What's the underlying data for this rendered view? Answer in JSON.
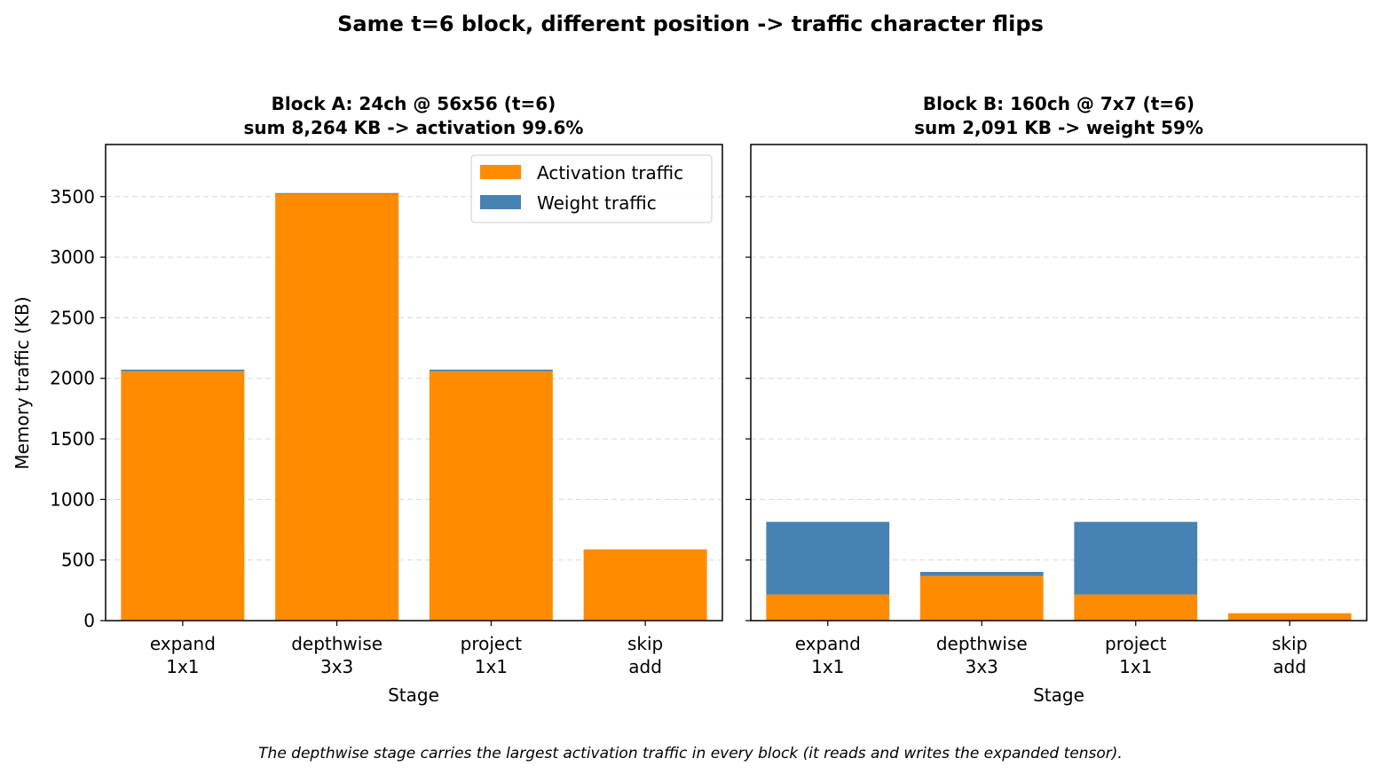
{
  "figure": {
    "suptitle": "Same t=6 block, different position -> traffic character flips",
    "footnote": "The depthwise stage carries the largest activation traffic in every block (it reads and writes the expanded tensor)."
  },
  "colors": {
    "activation": "#ff8c00",
    "weight": "#4682b4",
    "grid": "#d9d9d9"
  },
  "legend": {
    "placement": "top-right of left panel",
    "items": [
      "Activation traffic",
      "Weight traffic"
    ]
  },
  "chart_data": [
    {
      "type": "bar",
      "stacked": true,
      "title_line1": "Block A: 24ch @ 56x56  (t=6)",
      "title_line2": "sum 8,264 KB  ->  activation 99.6%",
      "xlabel": "Stage",
      "ylabel": "Memory traffic (KB)",
      "ylim": [
        0,
        3930
      ],
      "yticks": [
        0,
        500,
        1000,
        1500,
        2000,
        2500,
        3000,
        3500
      ],
      "grid": "y dashed",
      "categories": [
        [
          "expand",
          "1x1"
        ],
        [
          "depthwise",
          "3x3"
        ],
        [
          "project",
          "1x1"
        ],
        [
          "skip",
          "add"
        ]
      ],
      "series": [
        {
          "name": "Activation traffic",
          "values": [
            2058,
            3528,
            2058,
            588
          ]
        },
        {
          "name": "Weight traffic",
          "values": [
            14,
            1,
            14,
            0
          ]
        }
      ]
    },
    {
      "type": "bar",
      "stacked": true,
      "title_line1": "Block B: 160ch @ 7x7  (t=6)",
      "title_line2": "sum 2,091 KB  ->  weight 59%",
      "xlabel": "Stage",
      "ylabel": "",
      "ylim": [
        0,
        3930
      ],
      "yticks": [
        0,
        500,
        1000,
        1500,
        2000,
        2500,
        3000,
        3500
      ],
      "grid": "y dashed",
      "categories": [
        [
          "expand",
          "1x1"
        ],
        [
          "depthwise",
          "3x3"
        ],
        [
          "project",
          "1x1"
        ],
        [
          "skip",
          "add"
        ]
      ],
      "series": [
        {
          "name": "Activation traffic",
          "values": [
            215,
            368,
            215,
            61
          ]
        },
        {
          "name": "Weight traffic",
          "values": [
            600,
            34,
            600,
            0
          ]
        }
      ]
    }
  ]
}
